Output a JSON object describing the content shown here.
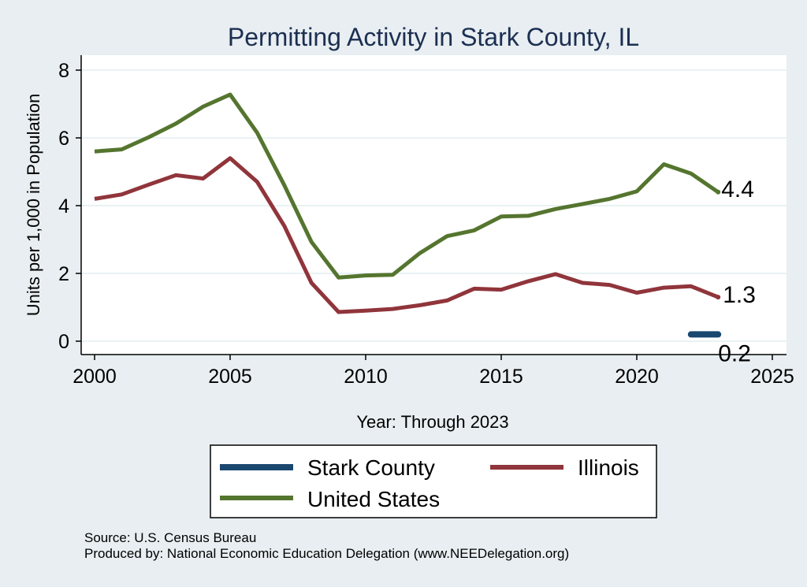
{
  "chart_data": {
    "type": "line",
    "title": "Permitting Activity in Stark County, IL",
    "xlabel": "Year: Through 2023",
    "ylabel": "Units per 1,000 in Population",
    "xlim": [
      2000,
      2025
    ],
    "ylim": [
      0,
      8
    ],
    "x_ticks": [
      2000,
      2005,
      2010,
      2015,
      2020,
      2025
    ],
    "y_ticks": [
      0,
      2,
      4,
      6,
      8
    ],
    "grid": true,
    "series": [
      {
        "name": "Stark County",
        "color": "#1a476f",
        "x": [
          2022,
          2023
        ],
        "y": [
          0.2,
          0.2
        ],
        "end_label": "0.2"
      },
      {
        "name": "Illinois",
        "color": "#90353b",
        "x": [
          2000,
          2001,
          2002,
          2003,
          2004,
          2005,
          2006,
          2007,
          2008,
          2009,
          2010,
          2011,
          2012,
          2013,
          2014,
          2015,
          2016,
          2017,
          2018,
          2019,
          2020,
          2021,
          2022,
          2023
        ],
        "y": [
          4.2,
          4.33,
          4.62,
          4.9,
          4.8,
          5.4,
          4.7,
          3.4,
          1.72,
          0.86,
          0.9,
          0.95,
          1.06,
          1.2,
          1.55,
          1.52,
          1.77,
          1.98,
          1.72,
          1.66,
          1.43,
          1.58,
          1.62,
          1.3
        ],
        "end_label": "1.3"
      },
      {
        "name": "United States",
        "color": "#55752f",
        "x": [
          2000,
          2001,
          2002,
          2003,
          2004,
          2005,
          2006,
          2007,
          2008,
          2009,
          2010,
          2011,
          2012,
          2013,
          2014,
          2015,
          2016,
          2017,
          2018,
          2019,
          2020,
          2021,
          2022,
          2023
        ],
        "y": [
          5.6,
          5.66,
          6.02,
          6.42,
          6.92,
          7.28,
          6.15,
          4.6,
          2.93,
          1.88,
          1.94,
          1.96,
          2.6,
          3.1,
          3.27,
          3.68,
          3.7,
          3.9,
          4.05,
          4.2,
          4.42,
          5.22,
          4.95,
          4.4
        ],
        "end_label": "4.4"
      }
    ],
    "legend": {
      "placement": "bottom",
      "order": [
        "Stark County",
        "Illinois",
        "United States"
      ]
    }
  },
  "footnotes": {
    "source": "Source: U.S. Census Bureau",
    "produced_by": "Produced by: National Economic Education Delegation (www.NEEDelegation.org)"
  }
}
